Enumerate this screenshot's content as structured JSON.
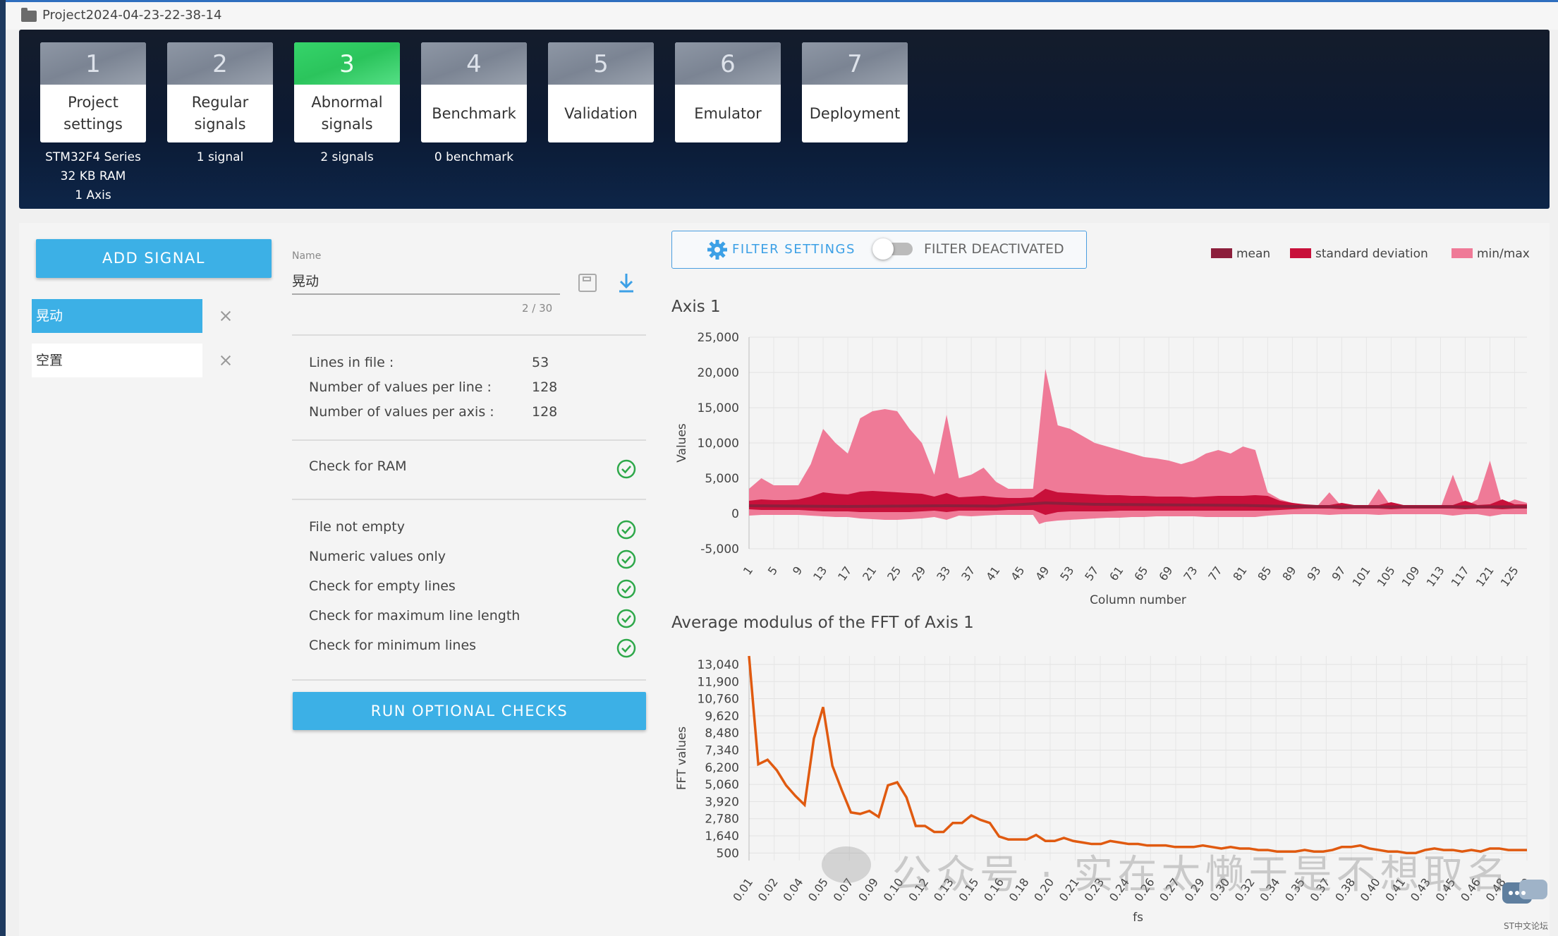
{
  "project": {
    "title": "Project2024-04-23-22-38-14"
  },
  "steps": [
    {
      "num": "1",
      "label": "Project\nsettings",
      "info": "STM32F4 Series\n32 KB RAM\n1 Axis",
      "active": false
    },
    {
      "num": "2",
      "label": "Regular\nsignals",
      "info": "1 signal",
      "active": false
    },
    {
      "num": "3",
      "label": "Abnormal\nsignals",
      "info": "2 signals",
      "active": true
    },
    {
      "num": "4",
      "label": "Benchmark",
      "info": "0 benchmark",
      "active": false
    },
    {
      "num": "5",
      "label": "Validation",
      "info": "",
      "active": false
    },
    {
      "num": "6",
      "label": "Emulator",
      "info": "",
      "active": false
    },
    {
      "num": "7",
      "label": "Deployment",
      "info": "",
      "active": false
    }
  ],
  "sidebar": {
    "add_label": "ADD SIGNAL",
    "signals": [
      {
        "name": "晃动",
        "selected": true
      },
      {
        "name": "空置",
        "selected": false
      }
    ]
  },
  "form": {
    "name_label": "Name",
    "name_value": "晃动",
    "name_count": "2 / 30"
  },
  "info": [
    {
      "label": "Lines in file :",
      "value": "53"
    },
    {
      "label": "Number of values per line :",
      "value": "128"
    },
    {
      "label": "Number of values per axis :",
      "value": "128"
    }
  ],
  "ram_check": {
    "label": "Check for RAM"
  },
  "checks": [
    {
      "label": "File not empty"
    },
    {
      "label": "Numeric values only"
    },
    {
      "label": "Check for empty lines"
    },
    {
      "label": "Check for maximum line length"
    },
    {
      "label": "Check for minimum lines"
    }
  ],
  "run_label": "RUN OPTIONAL CHECKS",
  "filter": {
    "settings_label": "FILTER SETTINGS",
    "state_label": "FILTER DEACTIVATED"
  },
  "legend": [
    {
      "label": "mean",
      "color": "#8c1f3c"
    },
    {
      "label": "standard deviation",
      "color": "#c8103a"
    },
    {
      "label": "min/max",
      "color": "#ef7a97"
    }
  ],
  "watermark": "公众号 · 实在太懒于是不想取名",
  "corner_text": "ST中文论坛",
  "chart_data": [
    {
      "type": "area",
      "title": "Axis 1",
      "xlabel": "Column number",
      "ylabel": "Values",
      "ylim": [
        -5000,
        25000
      ],
      "yticks": [
        "25,000",
        "20,000",
        "15,000",
        "10,000",
        "5,000",
        "0",
        "-5,000"
      ],
      "xticks": [
        "1",
        "5",
        "9",
        "13",
        "17",
        "21",
        "25",
        "29",
        "33",
        "37",
        "41",
        "45",
        "49",
        "53",
        "57",
        "61",
        "65",
        "69",
        "73",
        "77",
        "81",
        "85",
        "89",
        "93",
        "97",
        "101",
        "105",
        "109",
        "113",
        "117",
        "121",
        "125"
      ],
      "grid": true,
      "series": [
        {
          "name": "min/max",
          "x": [
            1,
            3,
            5,
            7,
            9,
            11,
            13,
            15,
            17,
            19,
            21,
            23,
            25,
            27,
            29,
            31,
            33,
            35,
            37,
            39,
            41,
            43,
            45,
            47,
            48,
            49,
            51,
            53,
            55,
            57,
            59,
            61,
            63,
            65,
            67,
            69,
            71,
            73,
            75,
            77,
            79,
            81,
            83,
            85,
            87,
            89,
            91,
            93,
            95,
            97,
            99,
            101,
            103,
            105,
            107,
            109,
            111,
            113,
            115,
            117,
            119,
            121,
            123,
            125,
            127
          ],
          "upper": [
            3500,
            5000,
            4000,
            4000,
            4000,
            7000,
            12000,
            10000,
            8500,
            13500,
            14500,
            14800,
            14500,
            12000,
            10000,
            5500,
            14000,
            5000,
            5500,
            6500,
            4500,
            3500,
            3500,
            3500,
            12000,
            20500,
            12500,
            12000,
            11000,
            10000,
            9500,
            9000,
            8500,
            8000,
            7800,
            7500,
            7000,
            7500,
            8500,
            9000,
            8500,
            9500,
            9000,
            3000,
            2000,
            1500,
            1200,
            1000,
            3000,
            1000,
            800,
            800,
            3500,
            1000,
            800,
            800,
            1000,
            800,
            5500,
            1000,
            2000,
            7500,
            1200,
            2000,
            1500
          ],
          "lower": [
            -300,
            -200,
            -200,
            -200,
            -200,
            -300,
            -400,
            -500,
            -500,
            -700,
            -800,
            -900,
            -900,
            -800,
            -700,
            -500,
            -900,
            -300,
            -400,
            -300,
            -200,
            -200,
            -200,
            -200,
            -1500,
            -1200,
            -1000,
            -900,
            -800,
            -700,
            -600,
            -600,
            -500,
            -500,
            -400,
            -400,
            -400,
            -400,
            -500,
            -500,
            -500,
            -500,
            -500,
            -300,
            -200,
            -100,
            -100,
            -100,
            -200,
            -100,
            -100,
            -100,
            -200,
            -100,
            -100,
            -100,
            -100,
            -100,
            -300,
            -100,
            -100,
            -400,
            -100,
            -100,
            -100
          ]
        },
        {
          "name": "standard deviation",
          "x": [
            1,
            3,
            5,
            7,
            9,
            11,
            13,
            15,
            17,
            19,
            21,
            23,
            25,
            27,
            29,
            31,
            33,
            35,
            37,
            39,
            41,
            43,
            45,
            47,
            49,
            51,
            53,
            55,
            57,
            59,
            61,
            63,
            65,
            67,
            69,
            71,
            73,
            75,
            77,
            79,
            81,
            83,
            85,
            87,
            89,
            91,
            93,
            95,
            97,
            99,
            101,
            103,
            105,
            107,
            109,
            111,
            113,
            115,
            117,
            119,
            121,
            123,
            125,
            127
          ],
          "upper": [
            1800,
            2000,
            1900,
            1900,
            2000,
            2400,
            3000,
            2800,
            2700,
            3100,
            3200,
            3100,
            3000,
            2900,
            2800,
            2400,
            2900,
            2300,
            2400,
            2500,
            2300,
            2200,
            2200,
            2300,
            3500,
            3000,
            2900,
            2800,
            2700,
            2600,
            2600,
            2500,
            2500,
            2400,
            2400,
            2400,
            2300,
            2400,
            2500,
            2500,
            2500,
            2600,
            2500,
            1800,
            1500,
            1300,
            1200,
            1200,
            1500,
            1200,
            1200,
            1200,
            1600,
            1200,
            1200,
            1200,
            1200,
            1200,
            1800,
            1200,
            1300,
            2000,
            1300,
            1300
          ],
          "lower": [
            600,
            500,
            500,
            500,
            500,
            400,
            300,
            300,
            300,
            200,
            200,
            200,
            200,
            200,
            300,
            400,
            200,
            400,
            400,
            400,
            400,
            500,
            500,
            500,
            -200,
            200,
            300,
            300,
            300,
            300,
            400,
            400,
            400,
            400,
            400,
            400,
            400,
            400,
            400,
            400,
            400,
            400,
            400,
            500,
            600,
            700,
            700,
            700,
            600,
            700,
            700,
            700,
            600,
            700,
            700,
            700,
            700,
            700,
            600,
            700,
            700,
            600,
            700,
            700
          ]
        },
        {
          "name": "mean",
          "x": [
            1,
            9,
            17,
            25,
            33,
            41,
            49,
            57,
            65,
            73,
            81,
            89,
            97,
            105,
            113,
            121,
            127
          ],
          "y": [
            1100,
            1050,
            1000,
            1050,
            1100,
            1050,
            1500,
            1300,
            1250,
            1200,
            1150,
            1000,
            950,
            950,
            950,
            950,
            950
          ]
        }
      ]
    },
    {
      "type": "line",
      "title": "Average modulus of the FFT of Axis 1",
      "xlabel": "fs",
      "ylabel": "FFT values",
      "ylim": [
        0,
        13600
      ],
      "yticks": [
        "13,040",
        "11,900",
        "10,760",
        "9,620",
        "8,480",
        "7,340",
        "6,200",
        "5,060",
        "3,920",
        "2,780",
        "1,640",
        "500"
      ],
      "xticks": [
        "0.01",
        "0.02",
        "0.04",
        "0.05",
        "0.07",
        "0.09",
        "0.10",
        "0.12",
        "0.13",
        "0.15",
        "0.16",
        "0.18",
        "0.20",
        "0.21",
        "0.23",
        "0.24",
        "0.26",
        "0.27",
        "0.29",
        "0.30",
        "0.32",
        "0.34",
        "0.35",
        "0.37",
        "0.38",
        "0.40",
        "0.41",
        "0.43",
        "0.45",
        "0.46",
        "0.48",
        "0.49"
      ],
      "grid": true,
      "series": [
        {
          "name": "",
          "y": [
            13600,
            6400,
            6700,
            6000,
            5000,
            4300,
            3700,
            8100,
            10200,
            6300,
            4700,
            3200,
            3100,
            3300,
            2900,
            5000,
            5200,
            4200,
            2300,
            2300,
            1900,
            1900,
            2500,
            2500,
            3000,
            2700,
            2500,
            1600,
            1400,
            1400,
            1400,
            1700,
            1300,
            1300,
            1500,
            1300,
            1200,
            1100,
            1100,
            1300,
            1200,
            1100,
            1100,
            1000,
            1000,
            1000,
            900,
            900,
            900,
            1000,
            900,
            800,
            900,
            800,
            800,
            700,
            700,
            600,
            600,
            600,
            700,
            600,
            600,
            700,
            900,
            900,
            1000,
            800,
            700,
            600,
            600,
            500,
            500,
            700,
            800,
            700,
            700,
            600,
            700,
            600,
            800,
            800,
            700,
            700,
            700
          ]
        }
      ]
    }
  ]
}
